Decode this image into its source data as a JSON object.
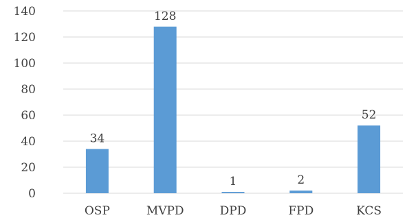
{
  "chart_data": {
    "type": "bar",
    "categories": [
      "OSP",
      "MVPD",
      "DPD",
      "FPD",
      "KCS"
    ],
    "values": [
      34,
      128,
      1,
      2,
      52
    ],
    "data_labels": [
      "34",
      "128",
      "1",
      "2",
      "52"
    ],
    "y_ticks": [
      "0",
      "20",
      "40",
      "60",
      "80",
      "100",
      "120",
      "140"
    ],
    "ylim": [
      0,
      140
    ],
    "grid": true,
    "legend": "none",
    "bar_color": "#5b9bd5"
  }
}
